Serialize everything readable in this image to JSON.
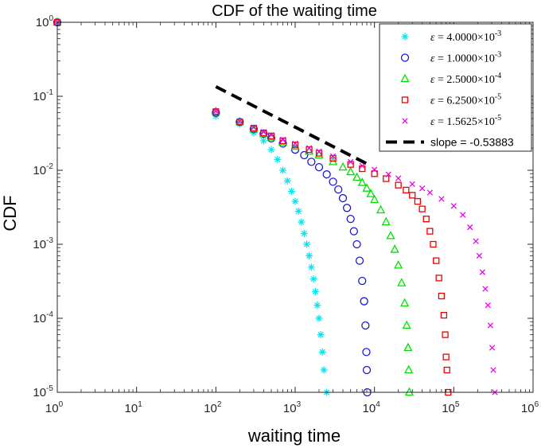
{
  "chart_data": {
    "type": "scatter",
    "title": "CDF of the waiting time",
    "xlabel": "waiting time",
    "ylabel": "CDF",
    "xscale": "log",
    "yscale": "log",
    "xlim": [
      1,
      1000000
    ],
    "ylim": [
      1e-05,
      1
    ],
    "legend_position": "top-right",
    "x_ticks": [
      {
        "base": "10",
        "exp": "0"
      },
      {
        "base": "10",
        "exp": "1"
      },
      {
        "base": "10",
        "exp": "2"
      },
      {
        "base": "10",
        "exp": "3"
      },
      {
        "base": "10",
        "exp": "4"
      },
      {
        "base": "10",
        "exp": "5"
      },
      {
        "base": "10",
        "exp": "6"
      }
    ],
    "y_ticks": [
      {
        "base": "10",
        "exp": "-5"
      },
      {
        "base": "10",
        "exp": "-4"
      },
      {
        "base": "10",
        "exp": "-3"
      },
      {
        "base": "10",
        "exp": "-2"
      },
      {
        "base": "10",
        "exp": "-1"
      },
      {
        "base": "10",
        "exp": "0"
      }
    ],
    "series": [
      {
        "name": "ε = 4.0000×10^-3",
        "legend": {
          "symbol": "ε",
          "eq": " = 4.0000×10",
          "exp": "-3"
        },
        "marker": "star",
        "color": "#00e5ee",
        "points": [
          [
            1,
            1
          ],
          [
            100,
            0.054
          ],
          [
            200,
            0.042
          ],
          [
            300,
            0.032
          ],
          [
            400,
            0.025
          ],
          [
            500,
            0.019
          ],
          [
            600,
            0.014
          ],
          [
            700,
            0.01
          ],
          [
            800,
            0.0072
          ],
          [
            900,
            0.0052
          ],
          [
            1000,
            0.0038
          ],
          [
            1100,
            0.0028
          ],
          [
            1200,
            0.002
          ],
          [
            1300,
            0.0014
          ],
          [
            1400,
            0.001
          ],
          [
            1500,
            0.0007
          ],
          [
            1600,
            0.00049
          ],
          [
            1700,
            0.00034
          ],
          [
            1800,
            0.00023
          ],
          [
            1900,
            0.00015
          ],
          [
            2000,
            0.0001
          ],
          [
            2100,
            6e-05
          ],
          [
            2200,
            3.5e-05
          ],
          [
            2300,
            2e-05
          ],
          [
            2500,
            1e-05
          ]
        ]
      },
      {
        "name": "ε = 1.0000×10^-3",
        "legend": {
          "symbol": "ε",
          "eq": " = 1.0000×10",
          "exp": "-3"
        },
        "marker": "circle",
        "color": "#1a1acc",
        "points": [
          [
            1,
            1
          ],
          [
            100,
            0.06
          ],
          [
            200,
            0.045
          ],
          [
            300,
            0.036
          ],
          [
            400,
            0.031
          ],
          [
            500,
            0.027
          ],
          [
            700,
            0.023
          ],
          [
            1000,
            0.019
          ],
          [
            1300,
            0.016
          ],
          [
            1600,
            0.013
          ],
          [
            2000,
            0.011
          ],
          [
            2500,
            0.0088
          ],
          [
            3000,
            0.007
          ],
          [
            3500,
            0.0055
          ],
          [
            4000,
            0.0042
          ],
          [
            4500,
            0.0031
          ],
          [
            5000,
            0.0022
          ],
          [
            5500,
            0.0015
          ],
          [
            6000,
            0.001
          ],
          [
            6500,
            0.0006
          ],
          [
            7000,
            0.00032
          ],
          [
            7400,
            0.00017
          ],
          [
            7700,
            8e-05
          ],
          [
            7900,
            3.5e-05
          ],
          [
            8000,
            2e-05
          ],
          [
            8100,
            1e-05
          ]
        ]
      },
      {
        "name": "ε = 2.5000×10^-4",
        "legend": {
          "symbol": "ε",
          "eq": " = 2.5000×10",
          "exp": "-4"
        },
        "marker": "triangle",
        "color": "#00e000",
        "points": [
          [
            1,
            1
          ],
          [
            100,
            0.062
          ],
          [
            200,
            0.045
          ],
          [
            300,
            0.036
          ],
          [
            400,
            0.031
          ],
          [
            500,
            0.028
          ],
          [
            700,
            0.024
          ],
          [
            1000,
            0.021
          ],
          [
            1500,
            0.018
          ],
          [
            2000,
            0.016
          ],
          [
            3000,
            0.013
          ],
          [
            4000,
            0.011
          ],
          [
            5000,
            0.0095
          ],
          [
            6000,
            0.008
          ],
          [
            7000,
            0.0068
          ],
          [
            8000,
            0.0057
          ],
          [
            9000,
            0.0048
          ],
          [
            10000,
            0.004
          ],
          [
            12000,
            0.0029
          ],
          [
            14000,
            0.002
          ],
          [
            16000,
            0.0013
          ],
          [
            18000,
            0.00085
          ],
          [
            20000,
            0.00052
          ],
          [
            22000,
            0.0003
          ],
          [
            24000,
            0.00016
          ],
          [
            25500,
            8e-05
          ],
          [
            26500,
            4e-05
          ],
          [
            27000,
            2e-05
          ],
          [
            27500,
            1e-05
          ]
        ]
      },
      {
        "name": "ε = 6.2500×10^-5",
        "legend": {
          "symbol": "ε",
          "eq": " = 6.2500×10",
          "exp": "-5"
        },
        "marker": "square",
        "color": "#ee0000",
        "points": [
          [
            1,
            1
          ],
          [
            100,
            0.062
          ],
          [
            200,
            0.045
          ],
          [
            300,
            0.037
          ],
          [
            400,
            0.032
          ],
          [
            500,
            0.029
          ],
          [
            700,
            0.025
          ],
          [
            1000,
            0.022
          ],
          [
            1500,
            0.019
          ],
          [
            2000,
            0.017
          ],
          [
            3000,
            0.0145
          ],
          [
            5000,
            0.012
          ],
          [
            7000,
            0.0105
          ],
          [
            10000,
            0.009
          ],
          [
            14000,
            0.0077
          ],
          [
            20000,
            0.0063
          ],
          [
            25000,
            0.0054
          ],
          [
            30000,
            0.0046
          ],
          [
            35000,
            0.0038
          ],
          [
            40000,
            0.003
          ],
          [
            45000,
            0.0022
          ],
          [
            50000,
            0.0015
          ],
          [
            55000,
            0.001
          ],
          [
            60000,
            0.0006
          ],
          [
            65000,
            0.00035
          ],
          [
            70000,
            0.0002
          ],
          [
            75000,
            0.00011
          ],
          [
            78000,
            6e-05
          ],
          [
            80000,
            3e-05
          ],
          [
            82000,
            2e-05
          ],
          [
            85000,
            1e-05
          ]
        ]
      },
      {
        "name": "ε = 1.5625×10^-5",
        "legend": {
          "symbol": "ε",
          "eq": " = 1.5625×10",
          "exp": "-5"
        },
        "marker": "x",
        "color": "#ee00ee",
        "points": [
          [
            1,
            1
          ],
          [
            100,
            0.063
          ],
          [
            200,
            0.046
          ],
          [
            300,
            0.038
          ],
          [
            400,
            0.033
          ],
          [
            500,
            0.03
          ],
          [
            700,
            0.026
          ],
          [
            1000,
            0.023
          ],
          [
            1500,
            0.02
          ],
          [
            2000,
            0.018
          ],
          [
            3000,
            0.0155
          ],
          [
            5000,
            0.013
          ],
          [
            7000,
            0.0115
          ],
          [
            10000,
            0.0102
          ],
          [
            15000,
            0.0088
          ],
          [
            20000,
            0.0078
          ],
          [
            30000,
            0.0065
          ],
          [
            40000,
            0.0057
          ],
          [
            50000,
            0.005
          ],
          [
            70000,
            0.0041
          ],
          [
            100000,
            0.0033
          ],
          [
            130000,
            0.0025
          ],
          [
            160000,
            0.0017
          ],
          [
            190000,
            0.0011
          ],
          [
            210000,
            0.0007
          ],
          [
            230000,
            0.00042
          ],
          [
            250000,
            0.00025
          ],
          [
            270000,
            0.00015
          ],
          [
            290000,
            8e-05
          ],
          [
            305000,
            4e-05
          ],
          [
            315000,
            2e-05
          ],
          [
            330000,
            1e-05
          ]
        ]
      },
      {
        "name": "slope = -0.53883",
        "legend": {
          "text": "slope = -0.53883"
        },
        "marker": "dashed-line",
        "color": "#000000",
        "points": [
          [
            100,
            0.135
          ],
          [
            1000,
            0.039
          ],
          [
            9000,
            0.0115
          ]
        ]
      }
    ]
  }
}
